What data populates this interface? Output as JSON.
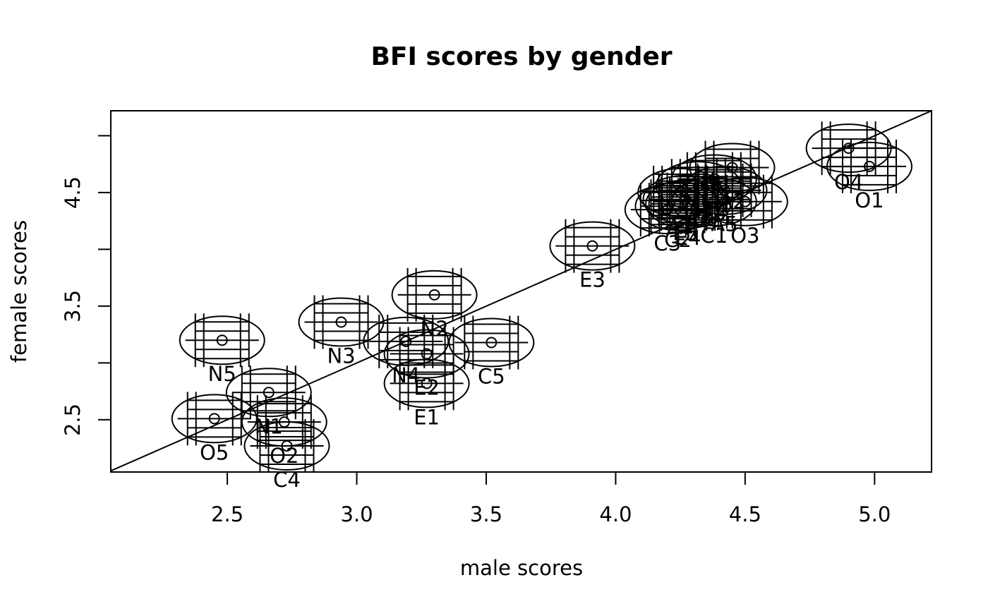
{
  "chart_data": {
    "type": "scatter",
    "title": "BFI scores by gender",
    "xlabel": "male scores",
    "ylabel": "female scores",
    "xlim": [
      2.05,
      5.22
    ],
    "ylim": [
      2.04,
      5.22
    ],
    "x_ticks": [
      2.5,
      3.0,
      3.5,
      4.0,
      4.5,
      5.0
    ],
    "x_tick_labels": [
      "2.5",
      "3.0",
      "3.5",
      "4.0",
      "4.5",
      "5.0"
    ],
    "y_ticks": [
      2.5,
      3.0,
      3.5,
      4.0,
      4.5,
      5.0
    ],
    "y_tick_labels": [
      "2.5",
      "",
      "3.5",
      "",
      "4.5",
      ""
    ],
    "grid": false,
    "legend": "none",
    "reference_line": "y = x",
    "points": [
      {
        "label": "A1",
        "x": 4.25,
        "y": 4.5
      },
      {
        "label": "A2",
        "x": 4.45,
        "y": 4.72
      },
      {
        "label": "A3",
        "x": 4.32,
        "y": 4.56
      },
      {
        "label": "A4",
        "x": 4.38,
        "y": 4.62
      },
      {
        "label": "A5",
        "x": 4.42,
        "y": 4.52
      },
      {
        "label": "C1",
        "x": 4.38,
        "y": 4.42
      },
      {
        "label": "C2",
        "x": 4.24,
        "y": 4.38
      },
      {
        "label": "C3",
        "x": 4.2,
        "y": 4.35
      },
      {
        "label": "C4",
        "x": 2.73,
        "y": 2.27
      },
      {
        "label": "C5",
        "x": 3.52,
        "y": 3.18
      },
      {
        "label": "E1",
        "x": 3.27,
        "y": 2.82
      },
      {
        "label": "E2",
        "x": 3.27,
        "y": 3.08
      },
      {
        "label": "E3",
        "x": 3.91,
        "y": 4.03
      },
      {
        "label": "E4",
        "x": 4.28,
        "y": 4.4
      },
      {
        "label": "E5",
        "x": 4.27,
        "y": 4.44
      },
      {
        "label": "N1",
        "x": 2.66,
        "y": 2.74
      },
      {
        "label": "N2",
        "x": 3.3,
        "y": 3.6
      },
      {
        "label": "N3",
        "x": 2.94,
        "y": 3.36
      },
      {
        "label": "N4",
        "x": 3.19,
        "y": 3.19
      },
      {
        "label": "N5",
        "x": 2.48,
        "y": 3.2
      },
      {
        "label": "O1",
        "x": 4.98,
        "y": 4.73
      },
      {
        "label": "O2",
        "x": 2.72,
        "y": 2.48
      },
      {
        "label": "O3",
        "x": 4.5,
        "y": 4.42
      },
      {
        "label": "O4",
        "x": 4.9,
        "y": 4.89
      },
      {
        "label": "O5",
        "x": 2.45,
        "y": 2.51
      }
    ]
  }
}
